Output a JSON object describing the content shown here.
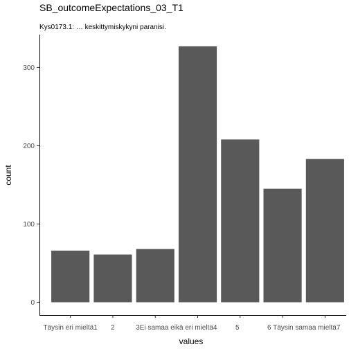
{
  "chart_data": {
    "type": "bar",
    "title": "SB_outcomeExpectations_03_T1",
    "subtitle": "Kys0173.1: … keskittymiskykyni paranisi.",
    "xlabel": "values",
    "ylabel": "count",
    "categories": [
      "Täysin eri mieltä1",
      "2",
      "3",
      "Ei samaa eikä eri mieltä4",
      "5",
      "6",
      "Täysin samaa mieltä7"
    ],
    "tick_labels": [
      "Täysin eri mieltä1",
      "2",
      "3Ei samaa eikä eri mieltä4",
      "5",
      "6 Täysin samaa mieltä7"
    ],
    "values": [
      66,
      61,
      68,
      327,
      208,
      145,
      183
    ],
    "yticks": [
      0,
      100,
      200,
      300
    ],
    "ylim": [
      0,
      345
    ],
    "grid": false,
    "legend": "none",
    "bar_color": "#595959"
  }
}
